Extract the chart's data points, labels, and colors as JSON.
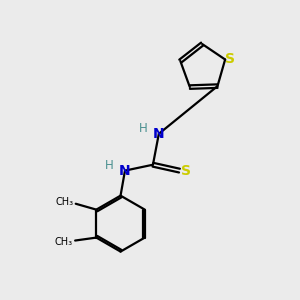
{
  "bg_color": "#ebebeb",
  "bond_color": "#000000",
  "N_color": "#0000cc",
  "H_color": "#4a9090",
  "S_thiophene_color": "#cccc00",
  "S_thiourea_color": "#cccc00",
  "line_width": 1.6,
  "font_size_atom": 10,
  "font_size_H": 8.5,
  "xlim": [
    0,
    10
  ],
  "ylim": [
    0,
    10
  ]
}
